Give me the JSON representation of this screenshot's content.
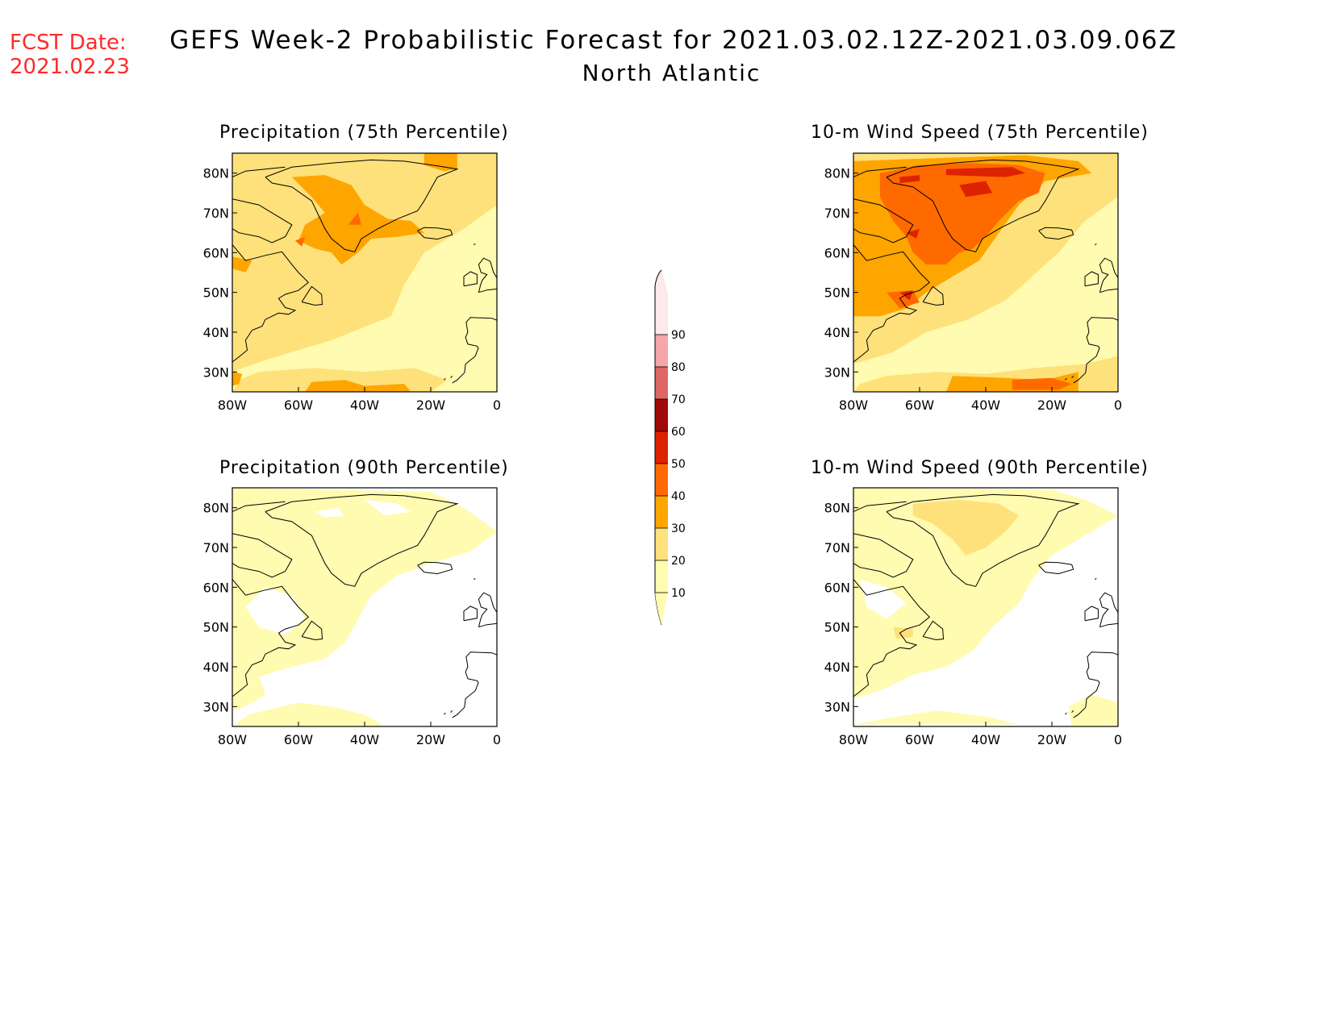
{
  "header": {
    "fcst_label": "FCST Date:",
    "fcst_date": "2021.02.23",
    "title": "GEFS Week-2 Probabilistic Forecast for 2021.03.02.12Z-2021.03.09.06Z",
    "region": "North Atlantic"
  },
  "axes": {
    "lat_labels": [
      "80N",
      "70N",
      "60N",
      "50N",
      "40N",
      "30N"
    ],
    "lon_labels": [
      "80W",
      "60W",
      "40W",
      "20W",
      "0"
    ]
  },
  "panels": [
    {
      "title": "Precipitation (75th Percentile)",
      "intensity": "moderate"
    },
    {
      "title": "10-m Wind Speed (75th Percentile)",
      "intensity": "high"
    },
    {
      "title": "Precipitation (90th Percentile)",
      "intensity": "low"
    },
    {
      "title": "10-m Wind Speed (90th Percentile)",
      "intensity": "low-moderate"
    }
  ],
  "colorbar": {
    "levels": [
      "90",
      "80",
      "70",
      "60",
      "50",
      "40",
      "30",
      "20",
      "10"
    ],
    "colors": [
      "#fde8ea",
      "#f4a6a8",
      "#e06666",
      "#a00a0a",
      "#dd2200",
      "#ff6a00",
      "#ffa500",
      "#fee17a",
      "#fffbb0"
    ]
  },
  "colors": {
    "c10": "#fffbb0",
    "c20": "#fee17a",
    "c30": "#ffa500",
    "c40": "#ff6a00",
    "c50": "#dd2200",
    "fcst_text": "#ff2a2a"
  }
}
